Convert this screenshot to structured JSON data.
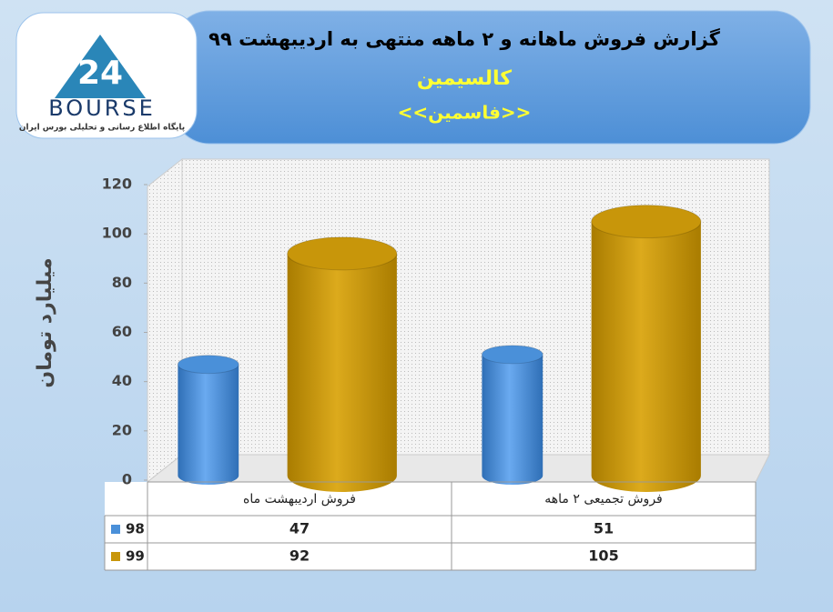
{
  "chart_data": {
    "type": "bar",
    "title": "گزارش فروش ماهانه و ۲ ماهه منتهی به اردیبهشت ۹۹",
    "subtitle": "کالسیمین",
    "subtitle2": "<<فاسمین>>",
    "logo": {
      "number": "24",
      "name": "BOURSE",
      "tagline": "پایگاه اطلاع رسانی و تحلیلی بورس ایران"
    },
    "y_label": "میلیارد تومان",
    "categories": [
      "فروش اردیبهشت  ماه",
      "فروش تجمیعی ۲ ماهه"
    ],
    "series": [
      {
        "name": "98",
        "color": "#4a90d9",
        "values": [
          47,
          51
        ]
      },
      {
        "name": "99",
        "color": "#c8960a",
        "values": [
          92,
          105
        ]
      }
    ],
    "ylim": [
      0,
      120
    ],
    "yticks": [
      0,
      20,
      40,
      60,
      80,
      100,
      120
    ],
    "grid": false
  }
}
